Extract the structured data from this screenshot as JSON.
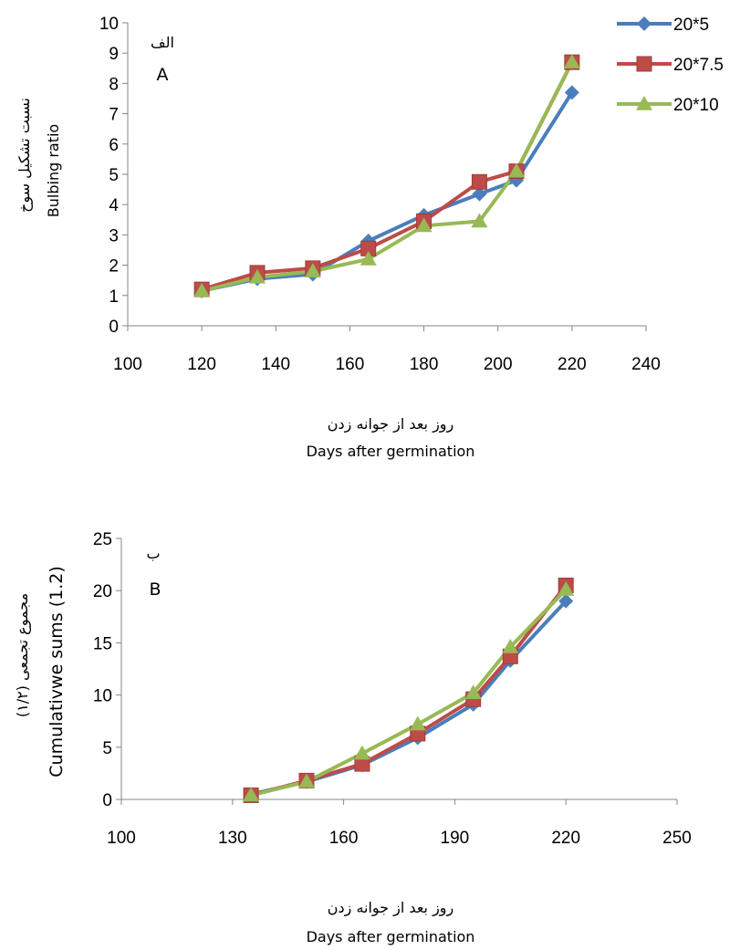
{
  "colors": {
    "s1": "#4a7ebb",
    "s2": "#be4b48",
    "s3": "#98b954",
    "axis": "#858585"
  },
  "chart_data": [
    {
      "type": "line",
      "panel_label_fa": "الف",
      "panel_label": "A",
      "xlabel_fa": "روز بعد از جوانه زدن",
      "xlabel": "Days after germination",
      "ylabel_fa": "نسبت تشکیل سوخ",
      "ylabel": "Bulbing ratio",
      "xlim": [
        100,
        240
      ],
      "xticks": [
        100,
        120,
        140,
        160,
        180,
        200,
        220,
        240
      ],
      "ylim": [
        0,
        10
      ],
      "yticks": [
        0,
        1,
        2,
        3,
        4,
        5,
        6,
        7,
        8,
        9,
        10
      ],
      "grid": false,
      "legend": "top-right",
      "x": [
        120,
        135,
        150,
        165,
        180,
        195,
        205,
        220
      ],
      "series": [
        {
          "name": "20*5",
          "marker": "diamond",
          "values": [
            1.15,
            1.55,
            1.7,
            2.8,
            3.65,
            4.35,
            4.8,
            7.7
          ]
        },
        {
          "name": "20*7.5",
          "marker": "square",
          "values": [
            1.2,
            1.75,
            1.9,
            2.55,
            3.45,
            4.75,
            5.1,
            8.7
          ]
        },
        {
          "name": "20*10",
          "marker": "triangle",
          "values": [
            1.15,
            1.6,
            1.8,
            2.2,
            3.3,
            3.45,
            5.1,
            8.7
          ]
        }
      ]
    },
    {
      "type": "line",
      "panel_label_fa": "ب",
      "panel_label": "B",
      "xlabel_fa": "روز بعد از جوانه زدن",
      "xlabel": "Days after germination",
      "ylabel_fa": "مجموع تجمعی (۱/۲)",
      "ylabel": "Cumulativwe sums (1.2)",
      "xlim": [
        100,
        250
      ],
      "xticks": [
        100,
        130,
        160,
        190,
        220,
        250
      ],
      "ylim": [
        0,
        25
      ],
      "yticks": [
        0,
        5,
        10,
        15,
        20,
        25
      ],
      "grid": false,
      "x": [
        135,
        150,
        165,
        180,
        195,
        205,
        220
      ],
      "series": [
        {
          "name": "20*5",
          "marker": "diamond",
          "values": [
            0.5,
            1.7,
            3.3,
            5.9,
            9.1,
            13.3,
            19.0
          ]
        },
        {
          "name": "20*7.5",
          "marker": "square",
          "values": [
            0.4,
            1.8,
            3.4,
            6.3,
            9.6,
            13.7,
            20.5
          ]
        },
        {
          "name": "20*10",
          "marker": "triangle",
          "values": [
            0.4,
            1.7,
            4.4,
            7.2,
            10.2,
            14.6,
            20.1
          ]
        }
      ]
    }
  ]
}
